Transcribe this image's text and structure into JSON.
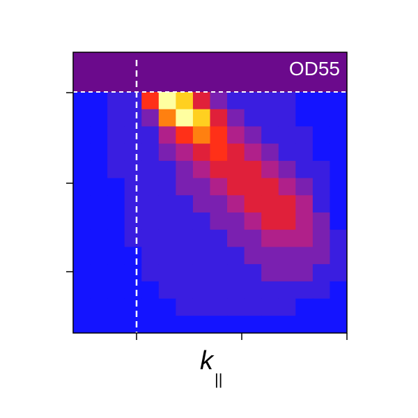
{
  "chart_data": {
    "type": "heatmap",
    "title": "OD55",
    "xlabel": "k",
    "xlabel_sub": "||",
    "background": "#6b0a8c",
    "colorscale": [
      "#6b0a8c",
      "#1414ff",
      "#3a1ee0",
      "#7a20b0",
      "#b0208a",
      "#e0203a",
      "#ff3018",
      "#ff8010",
      "#ffd020",
      "#ffffa0"
    ],
    "z": [
      [
        1,
        1,
        2,
        2,
        6,
        9,
        8,
        5,
        3,
        2,
        2,
        2,
        2,
        1,
        1,
        1
      ],
      [
        1,
        1,
        2,
        2,
        3,
        7,
        9,
        8,
        5,
        3,
        2,
        2,
        2,
        1,
        1,
        1
      ],
      [
        1,
        1,
        2,
        2,
        2,
        4,
        6,
        7,
        6,
        4,
        3,
        2,
        2,
        2,
        1,
        1
      ],
      [
        1,
        1,
        2,
        2,
        2,
        3,
        4,
        5,
        6,
        5,
        4,
        3,
        2,
        2,
        1,
        1
      ],
      [
        1,
        1,
        2,
        2,
        2,
        2,
        3,
        4,
        5,
        5,
        5,
        4,
        3,
        2,
        2,
        1
      ],
      [
        1,
        1,
        1,
        2,
        2,
        2,
        3,
        3,
        4,
        5,
        5,
        5,
        4,
        3,
        2,
        1
      ],
      [
        1,
        1,
        1,
        2,
        2,
        2,
        2,
        3,
        3,
        4,
        5,
        5,
        5,
        4,
        2,
        1
      ],
      [
        1,
        1,
        1,
        2,
        2,
        2,
        2,
        2,
        3,
        3,
        4,
        5,
        5,
        4,
        3,
        1
      ],
      [
        1,
        1,
        1,
        2,
        2,
        2,
        2,
        2,
        2,
        3,
        3,
        4,
        4,
        4,
        3,
        2
      ],
      [
        1,
        1,
        1,
        1,
        2,
        2,
        2,
        2,
        2,
        2,
        3,
        3,
        3,
        3,
        3,
        2
      ],
      [
        1,
        1,
        1,
        1,
        2,
        2,
        2,
        2,
        2,
        2,
        2,
        3,
        3,
        3,
        2,
        2
      ],
      [
        1,
        1,
        1,
        1,
        1,
        2,
        2,
        2,
        2,
        2,
        2,
        2,
        2,
        2,
        2,
        1
      ],
      [
        1,
        1,
        1,
        1,
        1,
        1,
        2,
        2,
        2,
        2,
        2,
        2,
        2,
        1,
        1,
        1
      ],
      [
        1,
        1,
        1,
        1,
        1,
        1,
        1,
        1,
        1,
        1,
        1,
        1,
        1,
        1,
        1,
        1
      ]
    ]
  }
}
